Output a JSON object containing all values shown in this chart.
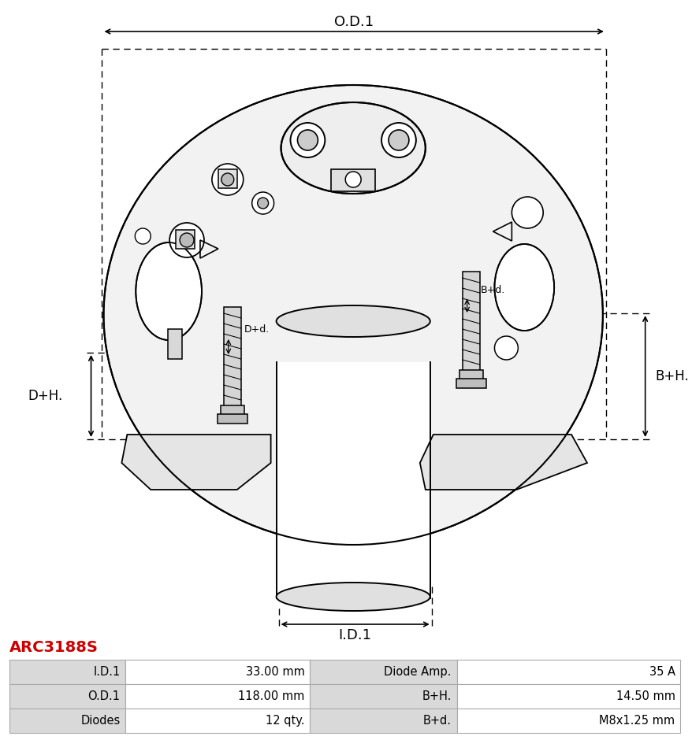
{
  "title_text": "ARC3188S",
  "title_color": "#cc0000",
  "bg_color": "#ffffff",
  "table_rows": [
    [
      "I.D.1",
      "33.00 mm",
      "Diode Amp.",
      "35 A"
    ],
    [
      "O.D.1",
      "118.00 mm",
      "B+H.",
      "14.50 mm"
    ],
    [
      "Diodes",
      "12 qty.",
      "B+d.",
      "M8x1.25 mm"
    ]
  ],
  "table_header_bg": "#d9d9d9",
  "table_line_color": "#aaaaaa",
  "dim_labels": {
    "OD1": "O.D.1",
    "ID1": "I.D.1",
    "DH": "D+H.",
    "BH": "B+H.",
    "Dd": "D+d.",
    "Bd": "B+d."
  }
}
